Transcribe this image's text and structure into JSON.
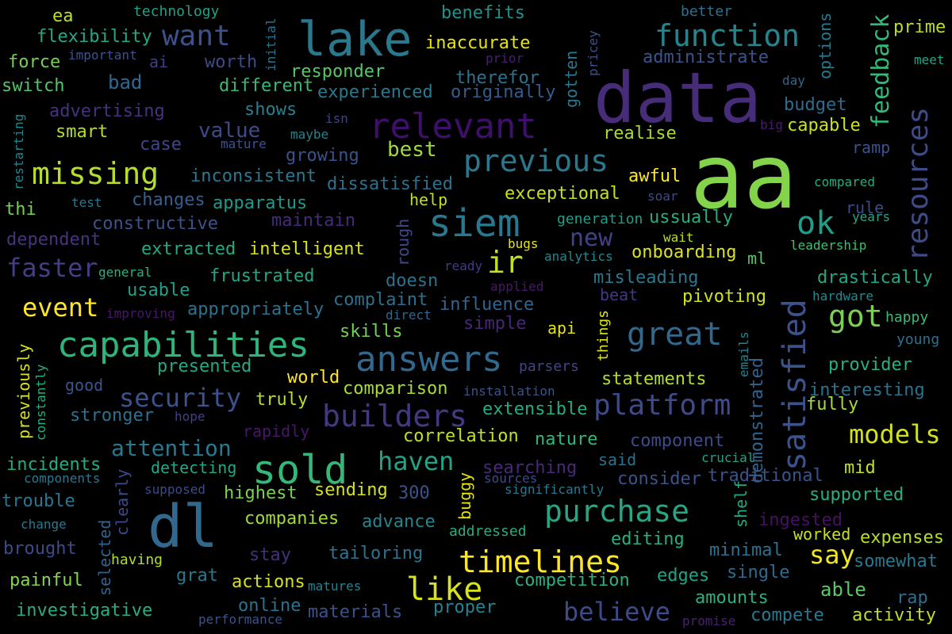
{
  "colors": {
    "background": "#000000"
  },
  "words": [
    {
      "text": "aa",
      "color": "#84d44b"
    },
    {
      "text": "data",
      "color": "#472c7a"
    },
    {
      "text": "lake",
      "color": "#2a788e"
    },
    {
      "text": "dl",
      "color": "#31688e"
    },
    {
      "text": "relevant",
      "color": "#3e0f6b"
    },
    {
      "text": "function",
      "color": "#25858e"
    },
    {
      "text": "siem",
      "color": "#2a788e"
    },
    {
      "text": "satisfied",
      "color": "#3b528b"
    },
    {
      "text": "resources",
      "color": "#3e4a89"
    },
    {
      "text": "capabilities",
      "color": "#2fb47c"
    },
    {
      "text": "answers",
      "color": "#31688e"
    },
    {
      "text": "sold",
      "color": "#35b779"
    },
    {
      "text": "builders",
      "color": "#453882"
    },
    {
      "text": "previous",
      "color": "#2a788e"
    },
    {
      "text": "missing",
      "color": "#b5de2b"
    },
    {
      "text": "great",
      "color": "#31688e"
    },
    {
      "text": "platform",
      "color": "#3e4a89"
    },
    {
      "text": "purchase",
      "color": "#26a784"
    },
    {
      "text": "timelines",
      "color": "#fde725"
    },
    {
      "text": "like",
      "color": "#d8e219"
    },
    {
      "text": "want",
      "color": "#3b528b"
    },
    {
      "text": "feedback",
      "color": "#35b779"
    },
    {
      "text": "ok",
      "color": "#1f9e89"
    },
    {
      "text": "ir",
      "color": "#c2df23"
    },
    {
      "text": "got",
      "color": "#7ad151"
    },
    {
      "text": "security",
      "color": "#3b528b"
    },
    {
      "text": "faster",
      "color": "#433e85"
    },
    {
      "text": "event",
      "color": "#fde725"
    },
    {
      "text": "models",
      "color": "#d2e21b"
    },
    {
      "text": "haven",
      "color": "#20a486"
    },
    {
      "text": "believe",
      "color": "#3e4a89"
    },
    {
      "text": "say",
      "color": "#f1e51d"
    },
    {
      "text": "new",
      "color": "#404387"
    },
    {
      "text": "attention",
      "color": "#2a788e"
    },
    {
      "text": "value",
      "color": "#3e4a89"
    },
    {
      "text": "best",
      "color": "#a0da39"
    },
    {
      "text": "technology",
      "color": "#1fa187"
    },
    {
      "text": "ea",
      "color": "#bddf26"
    },
    {
      "text": "flexibility",
      "color": "#26a784"
    },
    {
      "text": "force",
      "color": "#75d054"
    },
    {
      "text": "important",
      "color": "#3b528b"
    },
    {
      "text": "ai",
      "color": "#433e85"
    },
    {
      "text": "worth",
      "color": "#3e4a89"
    },
    {
      "text": "initial",
      "color": "#2c728e"
    },
    {
      "text": "benefits",
      "color": "#21918c"
    },
    {
      "text": "inaccurate",
      "color": "#e5e419"
    },
    {
      "text": "prior",
      "color": "#481f70"
    },
    {
      "text": "pricey",
      "color": "#3b528b"
    },
    {
      "text": "gotten",
      "color": "#2a788e"
    },
    {
      "text": "better",
      "color": "#2d708e"
    },
    {
      "text": "options",
      "color": "#2a788e"
    },
    {
      "text": "prime",
      "color": "#bade28"
    },
    {
      "text": "meet",
      "color": "#22a785"
    },
    {
      "text": "switch",
      "color": "#52c569"
    },
    {
      "text": "bad",
      "color": "#31688e"
    },
    {
      "text": "different",
      "color": "#38b977"
    },
    {
      "text": "responder",
      "color": "#58c765"
    },
    {
      "text": "therefor",
      "color": "#2c738e"
    },
    {
      "text": "administrate",
      "color": "#3b528b"
    },
    {
      "text": "day",
      "color": "#31688e"
    },
    {
      "text": "advertising",
      "color": "#46327e"
    },
    {
      "text": "experienced",
      "color": "#2a788e"
    },
    {
      "text": "originally",
      "color": "#365c8d"
    },
    {
      "text": "shows",
      "color": "#26818e"
    },
    {
      "text": "budget",
      "color": "#2f6c8e"
    },
    {
      "text": "restarting",
      "color": "#25848e"
    },
    {
      "text": "smart",
      "color": "#b5de2b"
    },
    {
      "text": "maybe",
      "color": "#26828e"
    },
    {
      "text": "isn",
      "color": "#404387"
    },
    {
      "text": "big",
      "color": "#481b6d"
    },
    {
      "text": "capable",
      "color": "#c8e020"
    },
    {
      "text": "realise",
      "color": "#a8db34"
    },
    {
      "text": "case",
      "color": "#414487"
    },
    {
      "text": "mature",
      "color": "#3b528b"
    },
    {
      "text": "growing",
      "color": "#3b528b"
    },
    {
      "text": "ramp",
      "color": "#3b528b"
    },
    {
      "text": "inconsistent",
      "color": "#2a788e"
    },
    {
      "text": "dissatisfied",
      "color": "#2d708e"
    },
    {
      "text": "awful",
      "color": "#fde725"
    },
    {
      "text": "compared",
      "color": "#26ad81"
    },
    {
      "text": "thi",
      "color": "#75d054"
    },
    {
      "text": "test",
      "color": "#2a788e"
    },
    {
      "text": "changes",
      "color": "#355f8d"
    },
    {
      "text": "apparatus",
      "color": "#1f9a8a"
    },
    {
      "text": "exceptional",
      "color": "#c5e021"
    },
    {
      "text": "soar",
      "color": "#3e4a89"
    },
    {
      "text": "rule",
      "color": "#3e4a89"
    },
    {
      "text": "years",
      "color": "#22a785"
    },
    {
      "text": "constructive",
      "color": "#3b528b"
    },
    {
      "text": "maintain",
      "color": "#472a7a"
    },
    {
      "text": "help",
      "color": "#c2df23"
    },
    {
      "text": "generation",
      "color": "#1f9e89"
    },
    {
      "text": "ussually",
      "color": "#27ad81"
    },
    {
      "text": "dependent",
      "color": "#46337e"
    },
    {
      "text": "rough",
      "color": "#3e4a89"
    },
    {
      "text": "wait",
      "color": "#bade28"
    },
    {
      "text": "bugs",
      "color": "#e2e418"
    },
    {
      "text": "leadership",
      "color": "#42be71"
    },
    {
      "text": "extracted",
      "color": "#23a983"
    },
    {
      "text": "intelligent",
      "color": "#d8e219"
    },
    {
      "text": "analytics",
      "color": "#23888e"
    },
    {
      "text": "onboarding",
      "color": "#dde318"
    },
    {
      "text": "ml",
      "color": "#58c765"
    },
    {
      "text": "general",
      "color": "#2ab07f"
    },
    {
      "text": "ready",
      "color": "#443983"
    },
    {
      "text": "frustrated",
      "color": "#22a785"
    },
    {
      "text": "doesn",
      "color": "#2c718e"
    },
    {
      "text": "applied",
      "color": "#48186a"
    },
    {
      "text": "misleading",
      "color": "#2a788e"
    },
    {
      "text": "drastically",
      "color": "#22a884"
    },
    {
      "text": "usable",
      "color": "#1fa088"
    },
    {
      "text": "beat",
      "color": "#453781"
    },
    {
      "text": "pivoting",
      "color": "#d2e21b"
    },
    {
      "text": "hardware",
      "color": "#23898e"
    },
    {
      "text": "improving",
      "color": "#481769"
    },
    {
      "text": "appropriately",
      "color": "#2c728e"
    },
    {
      "text": "complaint",
      "color": "#2d708e"
    },
    {
      "text": "influence",
      "color": "#32648e"
    },
    {
      "text": "direct",
      "color": "#31688e"
    },
    {
      "text": "previously",
      "color": "#d8e219"
    },
    {
      "text": "skills",
      "color": "#73d056"
    },
    {
      "text": "simple",
      "color": "#482576"
    },
    {
      "text": "api",
      "color": "#e5e419"
    },
    {
      "text": "things",
      "color": "#dde318"
    },
    {
      "text": "emails",
      "color": "#26828e"
    },
    {
      "text": "happy",
      "color": "#3aba76"
    },
    {
      "text": "young",
      "color": "#2c718e"
    },
    {
      "text": "constantly",
      "color": "#26ad81"
    },
    {
      "text": "presented",
      "color": "#23a983"
    },
    {
      "text": "parsers",
      "color": "#414487"
    },
    {
      "text": "provider",
      "color": "#29af7f"
    },
    {
      "text": "good",
      "color": "#39568c"
    },
    {
      "text": "world",
      "color": "#fde725"
    },
    {
      "text": "comparison",
      "color": "#a8db34"
    },
    {
      "text": "installation",
      "color": "#3b528b"
    },
    {
      "text": "statements",
      "color": "#b0dd2f"
    },
    {
      "text": "interesting",
      "color": "#2c728e"
    },
    {
      "text": "truly",
      "color": "#b5de2b"
    },
    {
      "text": "fully",
      "color": "#a8db34"
    },
    {
      "text": "stronger",
      "color": "#2d708e"
    },
    {
      "text": "hope",
      "color": "#433e85"
    },
    {
      "text": "extensible",
      "color": "#25ac82"
    },
    {
      "text": "demonstrated",
      "color": "#33638d"
    },
    {
      "text": "rapidly",
      "color": "#481769"
    },
    {
      "text": "correlation",
      "color": "#c2df23"
    },
    {
      "text": "nature",
      "color": "#32b67a"
    },
    {
      "text": "component",
      "color": "#3e4a89"
    },
    {
      "text": "crucial",
      "color": "#20a486"
    },
    {
      "text": "incidents",
      "color": "#25ab82"
    },
    {
      "text": "detecting",
      "color": "#22a884"
    },
    {
      "text": "searching",
      "color": "#482979"
    },
    {
      "text": "said",
      "color": "#2c728e"
    },
    {
      "text": "components",
      "color": "#2a788e"
    },
    {
      "text": "sources",
      "color": "#3e4a89"
    },
    {
      "text": "traditional",
      "color": "#3b528b"
    },
    {
      "text": "mid",
      "color": "#c2df23"
    },
    {
      "text": "supposed",
      "color": "#3e4a89"
    },
    {
      "text": "clearly",
      "color": "#3e4a89"
    },
    {
      "text": "consider",
      "color": "#3b528b"
    },
    {
      "text": "buggy",
      "color": "#e2e418"
    },
    {
      "text": "significantly",
      "color": "#2a778e"
    },
    {
      "text": "shelf",
      "color": "#24aa83"
    },
    {
      "text": "trouble",
      "color": "#2b758e"
    },
    {
      "text": "highest",
      "color": "#7ad151"
    },
    {
      "text": "sending",
      "color": "#d5e21a"
    },
    {
      "text": "300",
      "color": "#3b528b"
    },
    {
      "text": "supported",
      "color": "#29af7f"
    },
    {
      "text": "change",
      "color": "#2a788e"
    },
    {
      "text": "selected",
      "color": "#33638d"
    },
    {
      "text": "companies",
      "color": "#a0da39"
    },
    {
      "text": "advance",
      "color": "#25848e"
    },
    {
      "text": "addressed",
      "color": "#26ad81"
    },
    {
      "text": "ingested",
      "color": "#471063"
    },
    {
      "text": "worked",
      "color": "#c8e020"
    },
    {
      "text": "expenses",
      "color": "#b5de2b"
    },
    {
      "text": "brought",
      "color": "#3e4a89"
    },
    {
      "text": "editing",
      "color": "#29af7f"
    },
    {
      "text": "minimal",
      "color": "#2c728e"
    },
    {
      "text": "somewhat",
      "color": "#2a788e"
    },
    {
      "text": "having",
      "color": "#b0dd2f"
    },
    {
      "text": "stay",
      "color": "#45307c"
    },
    {
      "text": "tailoring",
      "color": "#2c738e"
    },
    {
      "text": "single",
      "color": "#306a8e"
    },
    {
      "text": "painful",
      "color": "#85d54a"
    },
    {
      "text": "grat",
      "color": "#2a788e"
    },
    {
      "text": "actions",
      "color": "#d8e219"
    },
    {
      "text": "matures",
      "color": "#26828e"
    },
    {
      "text": "competition",
      "color": "#2bb07f"
    },
    {
      "text": "edges",
      "color": "#20a486"
    },
    {
      "text": "able",
      "color": "#5cc863"
    },
    {
      "text": "investigative",
      "color": "#29af7f"
    },
    {
      "text": "online",
      "color": "#2c728e"
    },
    {
      "text": "materials",
      "color": "#3b528b"
    },
    {
      "text": "proper",
      "color": "#25848e"
    },
    {
      "text": "amounts",
      "color": "#2ab07f"
    },
    {
      "text": "rap",
      "color": "#2d708e"
    },
    {
      "text": "performance",
      "color": "#3b528b"
    },
    {
      "text": "promise",
      "color": "#482173"
    },
    {
      "text": "compete",
      "color": "#2a788e"
    },
    {
      "text": "activity",
      "color": "#c2df23"
    }
  ]
}
